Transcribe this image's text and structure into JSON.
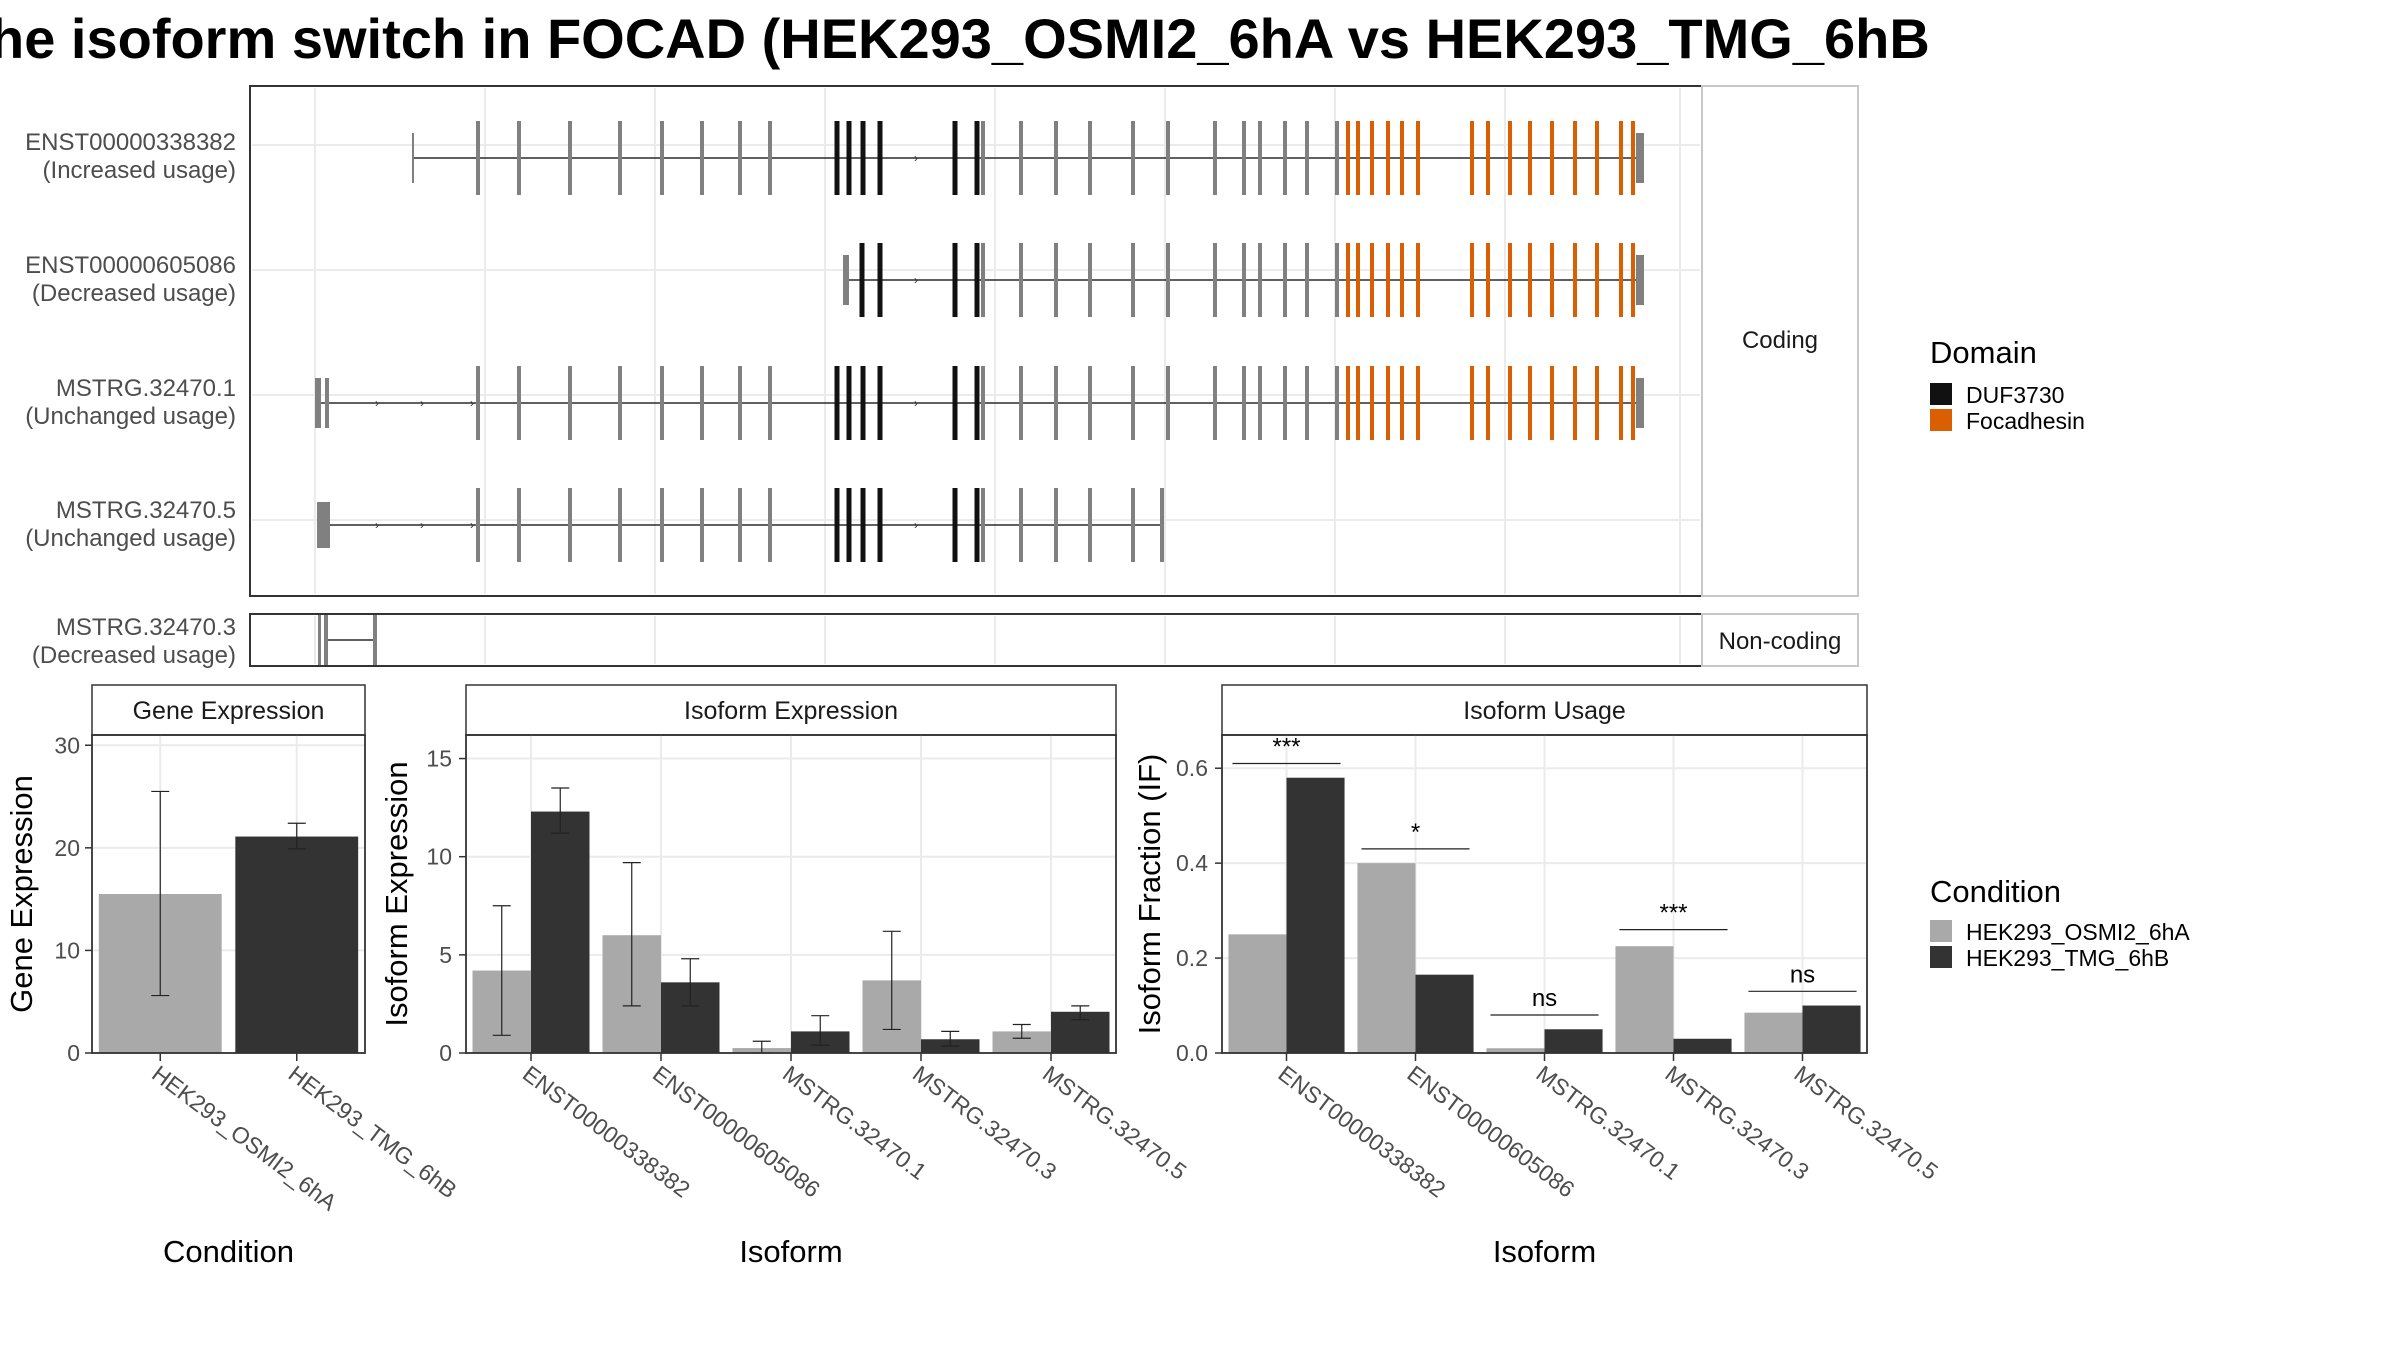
{
  "title": "he isoform switch in FOCAD (HEK293_OSMI2_6hA vs HEK293_TMG_6hB",
  "colors": {
    "intron": "#000000",
    "exon": "#808080",
    "duf3730": "#111111",
    "focadhesin": "#D95F02",
    "bar_cond_a": "#A9A9A9",
    "bar_cond_b": "#333333",
    "strip_bg": "#FFFFFF",
    "panel_border": "#333333",
    "grid": "#EBEBEB"
  },
  "structure": {
    "facet_coding": "Coding",
    "facet_noncoding": "Non-coding",
    "transcripts": [
      {
        "id": "ENST00000338382",
        "usage": "(Increased usage)",
        "group": "coding"
      },
      {
        "id": "ENST00000605086",
        "usage": "(Decreased usage)",
        "group": "coding"
      },
      {
        "id": "MSTRG.32470.1",
        "usage": "(Unchanged usage)",
        "group": "coding"
      },
      {
        "id": "MSTRG.32470.5",
        "usage": "(Unchanged usage)",
        "group": "coding"
      },
      {
        "id": "MSTRG.32470.3",
        "usage": "(Decreased usage)",
        "group": "noncoding"
      }
    ]
  },
  "legend_domain": {
    "title": "Domain",
    "items": [
      {
        "label": "DUF3730",
        "color": "#111111"
      },
      {
        "label": "Focadhesin",
        "color": "#D95F02"
      }
    ]
  },
  "legend_condition": {
    "title": "Condition",
    "items": [
      {
        "label": "HEK293_OSMI2_6hA",
        "color": "#A9A9A9"
      },
      {
        "label": "HEK293_TMG_6hB",
        "color": "#333333"
      }
    ]
  },
  "chart_data": [
    {
      "type": "bar",
      "strip": "Gene Expression",
      "xlabel": "Condition",
      "ylabel": "Gene Expression",
      "ylim": [
        0,
        31
      ],
      "yticks": [
        0,
        10,
        20,
        30
      ],
      "categories": [
        "HEK293_OSMI2_6hA",
        "HEK293_TMG_6hB"
      ],
      "values": [
        15.5,
        21.1
      ],
      "error_low": [
        5.6,
        19.9
      ],
      "error_high": [
        25.5,
        22.4
      ]
    },
    {
      "type": "bar",
      "strip": "Isoform Expression",
      "xlabel": "Isoform",
      "ylabel": "Isoform Expression",
      "ylim": [
        0,
        16.2
      ],
      "yticks": [
        0,
        5,
        10,
        15
      ],
      "categories": [
        "ENST00000338382",
        "ENST00000605086",
        "MSTRG.32470.1",
        "MSTRG.32470.3",
        "MSTRG.32470.5"
      ],
      "series": [
        {
          "name": "HEK293_OSMI2_6hA",
          "values": [
            4.2,
            6.0,
            0.25,
            3.7,
            1.1
          ],
          "error_low": [
            0.9,
            2.4,
            0.0,
            1.2,
            0.75
          ],
          "error_high": [
            7.5,
            9.7,
            0.6,
            6.2,
            1.45
          ]
        },
        {
          "name": "HEK293_TMG_6hB",
          "values": [
            12.3,
            3.6,
            1.1,
            0.7,
            2.1
          ],
          "error_low": [
            11.2,
            2.4,
            0.4,
            0.35,
            1.7
          ],
          "error_high": [
            13.5,
            4.8,
            1.9,
            1.1,
            2.4
          ]
        }
      ]
    },
    {
      "type": "bar",
      "strip": "Isoform Usage",
      "xlabel": "Isoform",
      "ylabel": "Isoform Fraction (IF)",
      "ylim": [
        0,
        0.67
      ],
      "yticks": [
        "0.0",
        "0.2",
        "0.4",
        "0.6"
      ],
      "categories": [
        "ENST00000338382",
        "ENST00000605086",
        "MSTRG.32470.1",
        "MSTRG.32470.3",
        "MSTRG.32470.5"
      ],
      "series": [
        {
          "name": "HEK293_OSMI2_6hA",
          "values": [
            0.25,
            0.4,
            0.01,
            0.225,
            0.085
          ]
        },
        {
          "name": "HEK293_TMG_6hB",
          "values": [
            0.58,
            0.165,
            0.05,
            0.03,
            0.1
          ]
        }
      ],
      "significance": [
        "***",
        "*",
        "ns",
        "***",
        "ns"
      ],
      "significance_y": [
        0.61,
        0.43,
        0.08,
        0.26,
        0.13
      ]
    }
  ]
}
